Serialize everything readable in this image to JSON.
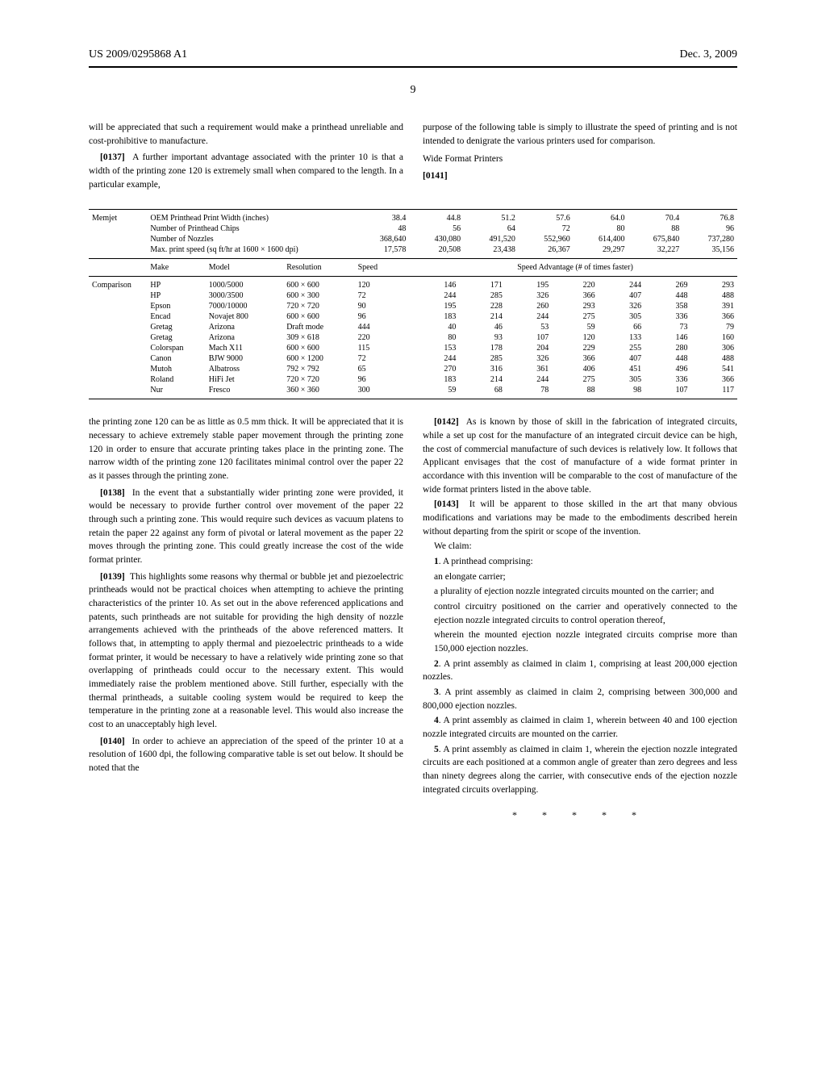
{
  "header": {
    "pub_no": "US 2009/0295868 A1",
    "pub_date": "Dec. 3, 2009"
  },
  "page_number": "9",
  "top_left": {
    "p1": "will be appreciated that such a requirement would make a printhead unreliable and cost-prohibitive to manufacture.",
    "p2_num": "[0137]",
    "p2": "A further important advantage associated with the printer 10 is that a width of the printing zone 120 is extremely small when compared to the length. In a particular example,"
  },
  "top_right": {
    "p1": "purpose of the following table is simply to illustrate the speed of printing and is not intended to denigrate the various printers used for comparison.",
    "wf_title": "Wide Format Printers",
    "p2_num": "[0141]"
  },
  "table": {
    "memjet_label": "Memjet",
    "comparison_label": "Comparison",
    "spec_rows": [
      {
        "label": "OEM Printhead Print Width (inches)",
        "v": [
          "38.4",
          "44.8",
          "51.2",
          "57.6",
          "64.0",
          "70.4",
          "76.8"
        ]
      },
      {
        "label": "Number of Printhead Chips",
        "v": [
          "48",
          "56",
          "64",
          "72",
          "80",
          "88",
          "96"
        ]
      },
      {
        "label": "Number of Nozzles",
        "v": [
          "368,640",
          "430,080",
          "491,520",
          "552,960",
          "614,400",
          "675,840",
          "737,280"
        ]
      },
      {
        "label": "Max. print speed (sq ft/hr at 1600 × 1600 dpi)",
        "v": [
          "17,578",
          "20,508",
          "23,438",
          "26,367",
          "29,297",
          "32,227",
          "35,156"
        ]
      }
    ],
    "header2": [
      "Make",
      "Model",
      "Resolution",
      "Speed"
    ],
    "header2_adv": "Speed Advantage (# of times faster)",
    "rows": [
      {
        "make": "HP",
        "model": "1000/5000",
        "res": "600 × 600",
        "speed": "120",
        "adv": [
          "146",
          "171",
          "195",
          "220",
          "244",
          "269",
          "293"
        ]
      },
      {
        "make": "HP",
        "model": "3000/3500",
        "res": "600 × 300",
        "speed": "72",
        "adv": [
          "244",
          "285",
          "326",
          "366",
          "407",
          "448",
          "488"
        ]
      },
      {
        "make": "Epson",
        "model": "7000/10000",
        "res": "720 × 720",
        "speed": "90",
        "adv": [
          "195",
          "228",
          "260",
          "293",
          "326",
          "358",
          "391"
        ]
      },
      {
        "make": "Encad",
        "model": "Novajet 800",
        "res": "600 × 600",
        "speed": "96",
        "adv": [
          "183",
          "214",
          "244",
          "275",
          "305",
          "336",
          "366"
        ]
      },
      {
        "make": "Gretag",
        "model": "Arizona",
        "res": "Draft mode",
        "speed": "444",
        "adv": [
          "40",
          "46",
          "53",
          "59",
          "66",
          "73",
          "79"
        ]
      },
      {
        "make": "Gretag",
        "model": "Arizona",
        "res": "309 × 618",
        "speed": "220",
        "adv": [
          "80",
          "93",
          "107",
          "120",
          "133",
          "146",
          "160"
        ]
      },
      {
        "make": "Colorspan",
        "model": "Mach X11",
        "res": "600 × 600",
        "speed": "115",
        "adv": [
          "153",
          "178",
          "204",
          "229",
          "255",
          "280",
          "306"
        ]
      },
      {
        "make": "Canon",
        "model": "BJW 9000",
        "res": "600 × 1200",
        "speed": "72",
        "adv": [
          "244",
          "285",
          "326",
          "366",
          "407",
          "448",
          "488"
        ]
      },
      {
        "make": "Mutoh",
        "model": "Albatross",
        "res": "792 × 792",
        "speed": "65",
        "adv": [
          "270",
          "316",
          "361",
          "406",
          "451",
          "496",
          "541"
        ]
      },
      {
        "make": "Roland",
        "model": "HiFi Jet",
        "res": "720 × 720",
        "speed": "96",
        "adv": [
          "183",
          "214",
          "244",
          "275",
          "305",
          "336",
          "366"
        ]
      },
      {
        "make": "Nur",
        "model": "Fresco",
        "res": "360 × 360",
        "speed": "300",
        "adv": [
          "59",
          "68",
          "78",
          "88",
          "98",
          "107",
          "117"
        ]
      }
    ]
  },
  "bottom_left": {
    "p1": "the printing zone 120 can be as little as 0.5 mm thick. It will be appreciated that it is necessary to achieve extremely stable paper movement through the printing zone 120 in order to ensure that accurate printing takes place in the printing zone. The narrow width of the printing zone 120 facilitates minimal control over the paper 22 as it passes through the printing zone.",
    "p2_num": "[0138]",
    "p2": "In the event that a substantially wider printing zone were provided, it would be necessary to provide further control over movement of the paper 22 through such a printing zone. This would require such devices as vacuum platens to retain the paper 22 against any form of pivotal or lateral movement as the paper 22 moves through the printing zone. This could greatly increase the cost of the wide format printer.",
    "p3_num": "[0139]",
    "p3": "This highlights some reasons why thermal or bubble jet and piezoelectric printheads would not be practical choices when attempting to achieve the printing characteristics of the printer 10. As set out in the above referenced applications and patents, such printheads are not suitable for providing the high density of nozzle arrangements achieved with the printheads of the above referenced matters. It follows that, in attempting to apply thermal and piezoelectric printheads to a wide format printer, it would be necessary to have a relatively wide printing zone so that overlapping of printheads could occur to the necessary extent. This would immediately raise the problem mentioned above. Still further, especially with the thermal printheads, a suitable cooling system would be required to keep the temperature in the printing zone at a reasonable level. This would also increase the cost to an unacceptably high level.",
    "p4_num": "[0140]",
    "p4": "In order to achieve an appreciation of the speed of the printer 10 at a resolution of 1600 dpi, the following comparative table is set out below. It should be noted that the"
  },
  "bottom_right": {
    "p1_num": "[0142]",
    "p1": "As is known by those of skill in the fabrication of integrated circuits, while a set up cost for the manufacture of an integrated circuit device can be high, the cost of commercial manufacture of such devices is relatively low. It follows that Applicant envisages that the cost of manufacture of a wide format printer in accordance with this invention will be comparable to the cost of manufacture of the wide format printers listed in the above table.",
    "p2_num": "[0143]",
    "p2": "It will be apparent to those skilled in the art that many obvious modifications and variations may be made to the embodiments described herein without departing from the spirit or scope of the invention.",
    "we_claim": "We claim:",
    "c1a": "1. A printhead comprising:",
    "c1b": "an elongate carrier;",
    "c1c": "a plurality of ejection nozzle integrated circuits mounted on the carrier; and",
    "c1d": "control circuitry positioned on the carrier and operatively connected to the ejection nozzle integrated circuits to control operation thereof,",
    "c1e": "wherein the mounted ejection nozzle integrated circuits comprise more than 150,000 ejection nozzles.",
    "c2": "2. A print assembly as claimed in claim 1, comprising at least 200,000 ejection nozzles.",
    "c3": "3. A print assembly as claimed in claim 2, comprising between 300,000 and 800,000 ejection nozzles.",
    "c4": "4. A print assembly as claimed in claim 1, wherein between 40 and 100 ejection nozzle integrated circuits are mounted on the carrier.",
    "c5": "5. A print assembly as claimed in claim 1, wherein the ejection nozzle integrated circuits are each positioned at a common angle of greater than zero degrees and less than ninety degrees along the carrier, with consecutive ends of the ejection nozzle integrated circuits overlapping.",
    "asterisks": "* * * * *"
  }
}
